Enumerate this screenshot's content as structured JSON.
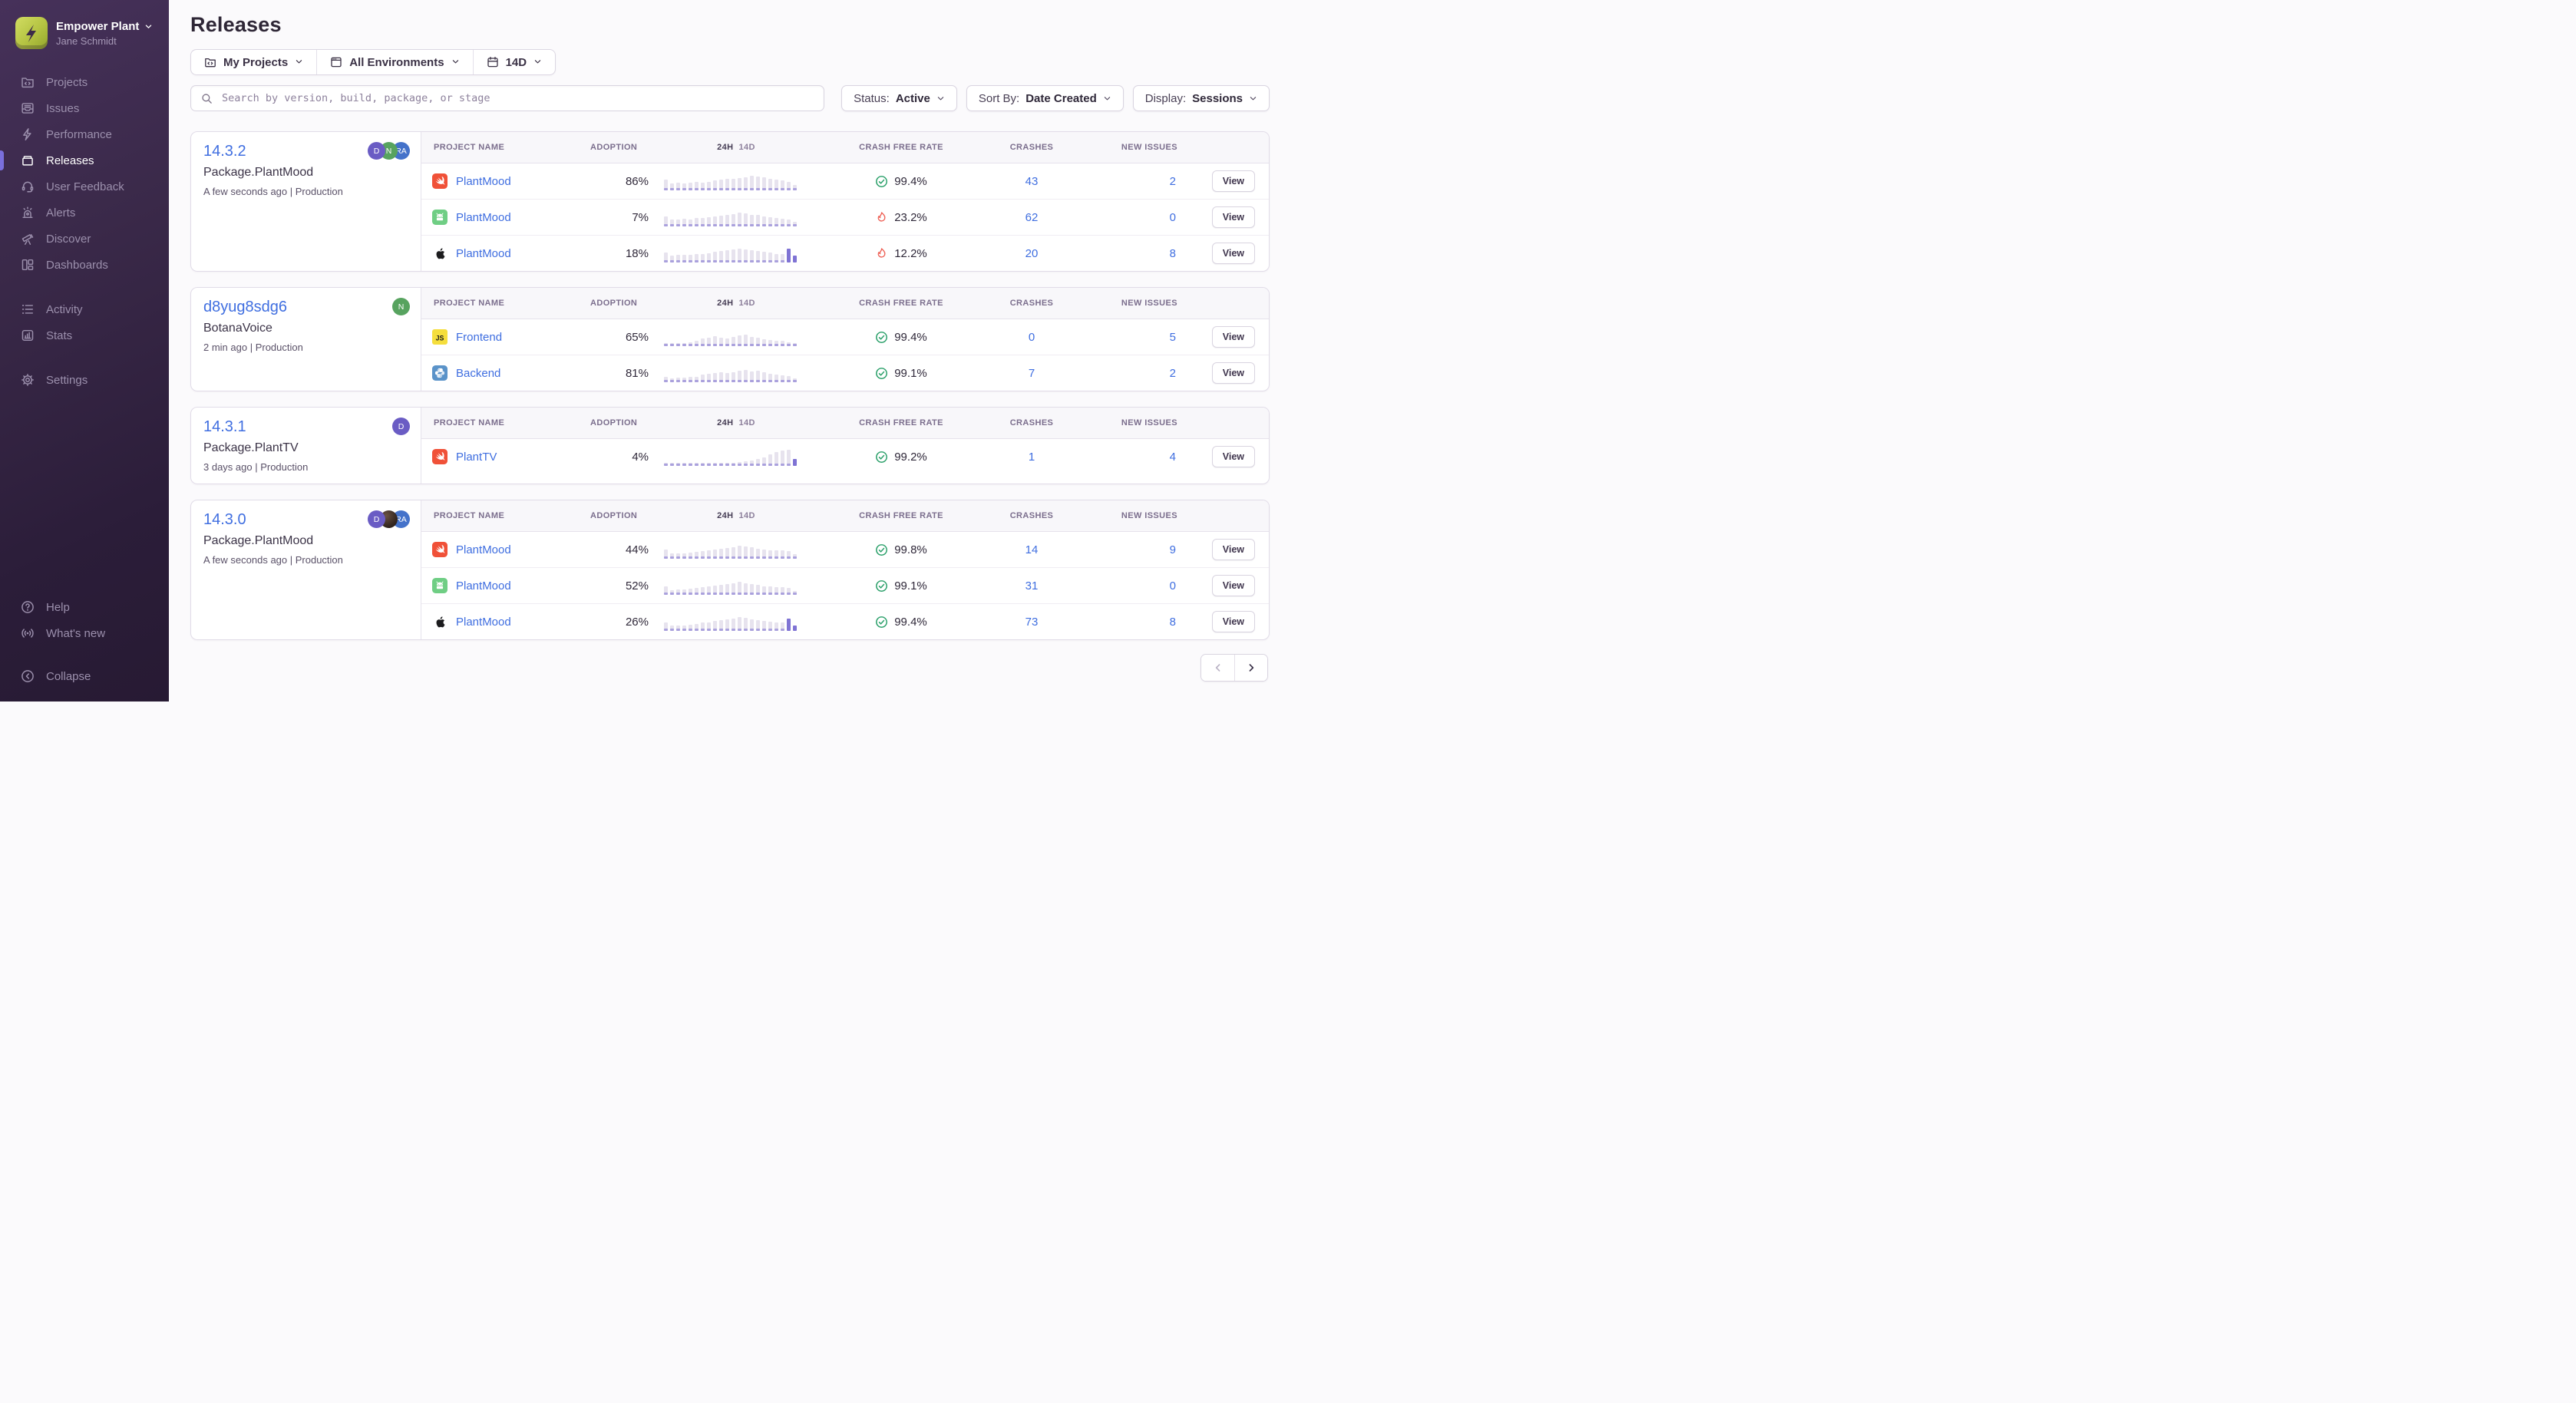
{
  "colors": {
    "accent_purple": "#7a6fdc",
    "link_blue": "#3f6ee0",
    "success_green": "#2ba06a",
    "danger_red": "#ee6055",
    "brand_lime": "#b4c342",
    "sidebar_dark": "#2b1d39"
  },
  "sidebar": {
    "org_name": "Empower Plant",
    "org_user": "Jane Schmidt",
    "groups": [
      {
        "items": [
          {
            "id": "projects",
            "label": "Projects",
            "icon": "projects",
            "active": false
          },
          {
            "id": "issues",
            "label": "Issues",
            "icon": "issues",
            "active": false
          },
          {
            "id": "performance",
            "label": "Performance",
            "icon": "performance",
            "active": false
          },
          {
            "id": "releases",
            "label": "Releases",
            "icon": "releases",
            "active": true
          },
          {
            "id": "user-feedback",
            "label": "User Feedback",
            "icon": "feedback",
            "active": false
          },
          {
            "id": "alerts",
            "label": "Alerts",
            "icon": "alerts",
            "active": false
          },
          {
            "id": "discover",
            "label": "Discover",
            "icon": "discover",
            "active": false
          },
          {
            "id": "dashboards",
            "label": "Dashboards",
            "icon": "dashboards",
            "active": false
          }
        ]
      },
      {
        "items": [
          {
            "id": "activity",
            "label": "Activity",
            "icon": "activity",
            "active": false
          },
          {
            "id": "stats",
            "label": "Stats",
            "icon": "stats",
            "active": false
          }
        ]
      },
      {
        "items": [
          {
            "id": "settings",
            "label": "Settings",
            "icon": "settings",
            "active": false
          }
        ]
      }
    ],
    "footer_items": [
      {
        "id": "help",
        "label": "Help",
        "icon": "help"
      },
      {
        "id": "whats-new",
        "label": "What's new",
        "icon": "whats-new"
      }
    ],
    "collapse_label": "Collapse"
  },
  "header": {
    "title": "Releases"
  },
  "filters": {
    "page_filters": [
      {
        "label": "My Projects"
      },
      {
        "label": "All Environments"
      },
      {
        "label": "14D"
      }
    ],
    "search_placeholder": "Search by version, build, package, or stage",
    "dropdowns": [
      {
        "label": "Status:",
        "value": "Active"
      },
      {
        "label": "Sort By:",
        "value": "Date Created"
      },
      {
        "label": "Display:",
        "value": "Sessions"
      }
    ]
  },
  "table_headers": {
    "project": "PROJECT NAME",
    "adoption": "ADOPTION",
    "period_24h": "24H",
    "period_14d": "14D",
    "crash_free": "CRASH FREE RATE",
    "crashes": "CRASHES",
    "new_issues": "NEW ISSUES"
  },
  "view_label": "View",
  "releases": [
    {
      "version": "14.3.2",
      "package": "Package.PlantMood",
      "meta": "A few seconds ago | Production",
      "avatars": [
        {
          "type": "initials",
          "label": "D",
          "color": "#6a5cc4"
        },
        {
          "type": "initials",
          "label": "N",
          "color": "#57a35f"
        },
        {
          "type": "initials",
          "label": "RA",
          "color": "#4472ca"
        }
      ],
      "projects": [
        {
          "platform": "swift",
          "name": "PlantMood",
          "adoption": "86%",
          "crash_free": "99.4%",
          "crash_status": "good",
          "crashes": "43",
          "new_issues": "2",
          "spark": [
            0.62,
            0.4,
            0.44,
            0.42,
            0.46,
            0.5,
            0.46,
            0.52,
            0.58,
            0.62,
            0.66,
            0.68,
            0.72,
            0.78,
            0.88,
            0.8,
            0.76,
            0.7,
            0.62,
            0.58,
            0.52,
            0.3
          ],
          "spark_highlight": []
        },
        {
          "platform": "android",
          "name": "PlantMood",
          "adoption": "7%",
          "crash_free": "23.2%",
          "crash_status": "bad",
          "crashes": "62",
          "new_issues": "0",
          "spark": [
            0.58,
            0.42,
            0.4,
            0.44,
            0.42,
            0.48,
            0.5,
            0.54,
            0.6,
            0.64,
            0.7,
            0.74,
            0.8,
            0.76,
            0.7,
            0.66,
            0.6,
            0.56,
            0.5,
            0.46,
            0.4,
            0.28
          ],
          "spark_highlight": []
        },
        {
          "platform": "apple",
          "name": "PlantMood",
          "adoption": "18%",
          "crash_free": "12.2%",
          "crash_status": "bad",
          "crashes": "20",
          "new_issues": "8",
          "spark": [
            0.6,
            0.42,
            0.44,
            0.46,
            0.44,
            0.5,
            0.52,
            0.56,
            0.62,
            0.66,
            0.72,
            0.76,
            0.84,
            0.78,
            0.72,
            0.68,
            0.62,
            0.58,
            0.52,
            0.48,
            0.8,
            0.42
          ],
          "spark_highlight": [
            20,
            21
          ]
        }
      ]
    },
    {
      "version": "d8yug8sdg6",
      "package": "BotanaVoice",
      "meta": "2 min ago | Production",
      "avatars": [
        {
          "type": "initials",
          "label": "N",
          "color": "#57a35f"
        }
      ],
      "projects": [
        {
          "platform": "js",
          "name": "Frontend",
          "adoption": "65%",
          "crash_free": "99.4%",
          "crash_status": "good",
          "crashes": "0",
          "new_issues": "5",
          "spark": [
            0.12,
            0.14,
            0.16,
            0.18,
            0.22,
            0.3,
            0.44,
            0.52,
            0.58,
            0.5,
            0.46,
            0.54,
            0.62,
            0.7,
            0.56,
            0.48,
            0.42,
            0.38,
            0.34,
            0.3,
            0.22,
            0.1
          ],
          "spark_highlight": []
        },
        {
          "platform": "python",
          "name": "Backend",
          "adoption": "81%",
          "crash_free": "99.1%",
          "crash_status": "good",
          "crashes": "7",
          "new_issues": "2",
          "spark": [
            0.3,
            0.24,
            0.26,
            0.28,
            0.3,
            0.34,
            0.44,
            0.5,
            0.54,
            0.58,
            0.54,
            0.6,
            0.66,
            0.72,
            0.64,
            0.66,
            0.58,
            0.5,
            0.44,
            0.4,
            0.36,
            0.24
          ],
          "spark_highlight": []
        }
      ]
    },
    {
      "version": "14.3.1",
      "package": "Package.PlantTV",
      "meta": "3 days ago | Production",
      "avatars": [
        {
          "type": "initials",
          "label": "D",
          "color": "#6a5cc4"
        }
      ],
      "projects": [
        {
          "platform": "swift",
          "name": "PlantTV",
          "adoption": "4%",
          "crash_free": "99.2%",
          "crash_status": "good",
          "crashes": "1",
          "new_issues": "4",
          "spark": [
            0.08,
            0.08,
            0.08,
            0.08,
            0.08,
            0.1,
            0.1,
            0.12,
            0.12,
            0.14,
            0.16,
            0.18,
            0.22,
            0.28,
            0.34,
            0.42,
            0.52,
            0.66,
            0.8,
            0.92,
            0.95,
            0.4
          ],
          "spark_highlight": [
            21
          ]
        }
      ]
    },
    {
      "version": "14.3.0",
      "package": "Package.PlantMood",
      "meta": "A few seconds ago | Production",
      "avatars": [
        {
          "type": "initials",
          "label": "D",
          "color": "#6a5cc4"
        },
        {
          "type": "photo",
          "label": "",
          "color": ""
        },
        {
          "type": "initials",
          "label": "RA",
          "color": "#4472ca"
        }
      ],
      "projects": [
        {
          "platform": "swift",
          "name": "PlantMood",
          "adoption": "44%",
          "crash_free": "99.8%",
          "crash_status": "good",
          "crashes": "14",
          "new_issues": "9",
          "spark": [
            0.55,
            0.3,
            0.32,
            0.34,
            0.36,
            0.4,
            0.46,
            0.5,
            0.54,
            0.58,
            0.62,
            0.7,
            0.78,
            0.72,
            0.66,
            0.6,
            0.56,
            0.52,
            0.48,
            0.52,
            0.46,
            0.28
          ],
          "spark_highlight": []
        },
        {
          "platform": "android",
          "name": "PlantMood",
          "adoption": "52%",
          "crash_free": "99.1%",
          "crash_status": "good",
          "crashes": "31",
          "new_issues": "0",
          "spark": [
            0.5,
            0.28,
            0.3,
            0.32,
            0.36,
            0.4,
            0.44,
            0.5,
            0.56,
            0.6,
            0.64,
            0.7,
            0.76,
            0.7,
            0.64,
            0.58,
            0.52,
            0.48,
            0.44,
            0.46,
            0.4,
            0.22
          ],
          "spark_highlight": []
        },
        {
          "platform": "apple",
          "name": "PlantMood",
          "adoption": "26%",
          "crash_free": "99.4%",
          "crash_status": "good",
          "crashes": "73",
          "new_issues": "8",
          "spark": [
            0.52,
            0.3,
            0.32,
            0.34,
            0.38,
            0.42,
            0.48,
            0.52,
            0.58,
            0.62,
            0.68,
            0.74,
            0.82,
            0.76,
            0.7,
            0.64,
            0.58,
            0.54,
            0.48,
            0.5,
            0.72,
            0.3
          ],
          "spark_highlight": [
            20,
            21
          ]
        }
      ]
    }
  ],
  "pagination": {
    "prev_enabled": false,
    "next_enabled": true
  }
}
